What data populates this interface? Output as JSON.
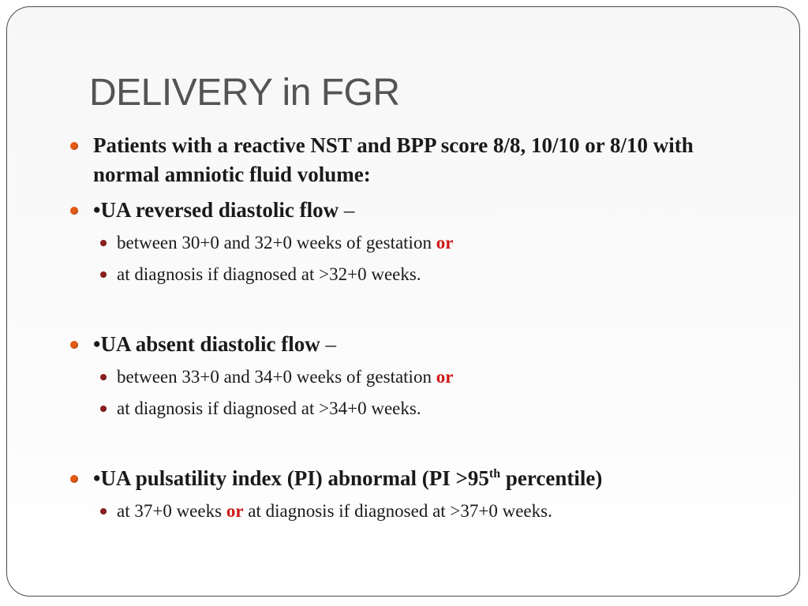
{
  "title": "DELIVERY in FGR",
  "items": {
    "b1": {
      "text": "Patients with a reactive NST and BPP score 8/8, 10/10 or 8/10 with normal amniotic fluid volume:"
    },
    "b2": {
      "text": "•UA reversed diastolic flow",
      "dash": "–"
    },
    "b2a": {
      "pre": "between 30+0 and 32+0 weeks of gestation ",
      "or": "or"
    },
    "b2b": {
      "text": "at diagnosis if diagnosed at >32+0 weeks."
    },
    "b3": {
      "text": "•UA absent diastolic flow",
      "dash": "–"
    },
    "b3a": {
      "pre": "between 33+0 and 34+0 weeks of gestation ",
      "or": "or"
    },
    "b3b": {
      "text": "at diagnosis if diagnosed at >34+0 weeks."
    },
    "b4": {
      "pre": "•UA pulsatility index (PI) abnormal (PI >95",
      "sup": "th",
      "post": " percentile)"
    },
    "b4a": {
      "pre": "at 37+0 weeks ",
      "or": "or",
      "post": " at diagnosis if diagnosed at >37+0 weeks."
    }
  },
  "colors": {
    "title": "#545454",
    "bullet_level1": "#e35a14",
    "bullet_level2": "#8c1f1f",
    "emphasis": "#d01818"
  }
}
